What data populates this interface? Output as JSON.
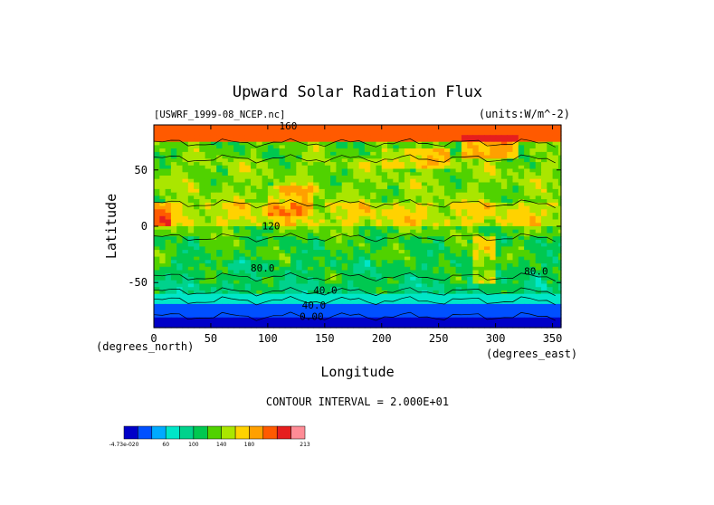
{
  "chart_data": {
    "type": "heatmap",
    "title": "Upward Solar Radiation Flux",
    "subtitle_left": "[USWRF_1999-08_NCEP.nc]",
    "subtitle_right": "(units:W/m^-2)",
    "xlabel": "Longitude",
    "ylabel": "Latitude",
    "x_unit_label": "(degrees_east)",
    "y_unit_label": "(degrees_north)",
    "xlim": [
      0,
      357.5
    ],
    "ylim": [
      -90,
      90
    ],
    "x_ticks": [
      "0",
      "50",
      "100",
      "150",
      "200",
      "250",
      "300",
      "350"
    ],
    "y_ticks": [
      "50",
      "0",
      "-50"
    ],
    "contour_interval_text": "CONTOUR INTERVAL = 2.000E+01",
    "contour_labels": [
      "160",
      "80.0",
      "120",
      "40.0",
      "80.0",
      "40.0",
      "0.00"
    ],
    "colorbar": {
      "tick_labels": [
        "-4.73e-020",
        "60",
        "100",
        "140",
        "180",
        "213"
      ],
      "colors": [
        "#0000c8",
        "#0050ff",
        "#00aaff",
        "#00e6c8",
        "#00d28c",
        "#00c850",
        "#50d200",
        "#aae600",
        "#ffd200",
        "#ffa000",
        "#ff5a00",
        "#e61e1e",
        "#ff8c96"
      ]
    },
    "zonal_profile": [
      {
        "lat_band": [
          75,
          90
        ],
        "value": 190
      },
      {
        "lat_band": [
          60,
          75
        ],
        "value": 110
      },
      {
        "lat_band": [
          20,
          60
        ],
        "value": 120
      },
      {
        "lat_band": [
          0,
          20
        ],
        "value": 140
      },
      {
        "lat_band": [
          -10,
          0
        ],
        "value": 110
      },
      {
        "lat_band": [
          -30,
          -10
        ],
        "value": 100
      },
      {
        "lat_band": [
          -50,
          -30
        ],
        "value": 90
      },
      {
        "lat_band": [
          -60,
          -50
        ],
        "value": 80
      },
      {
        "lat_band": [
          -70,
          -60
        ],
        "value": 40
      },
      {
        "lat_band": [
          -80,
          -70
        ],
        "value": 10
      },
      {
        "lat_band": [
          -90,
          -80
        ],
        "value": 0
      }
    ]
  }
}
